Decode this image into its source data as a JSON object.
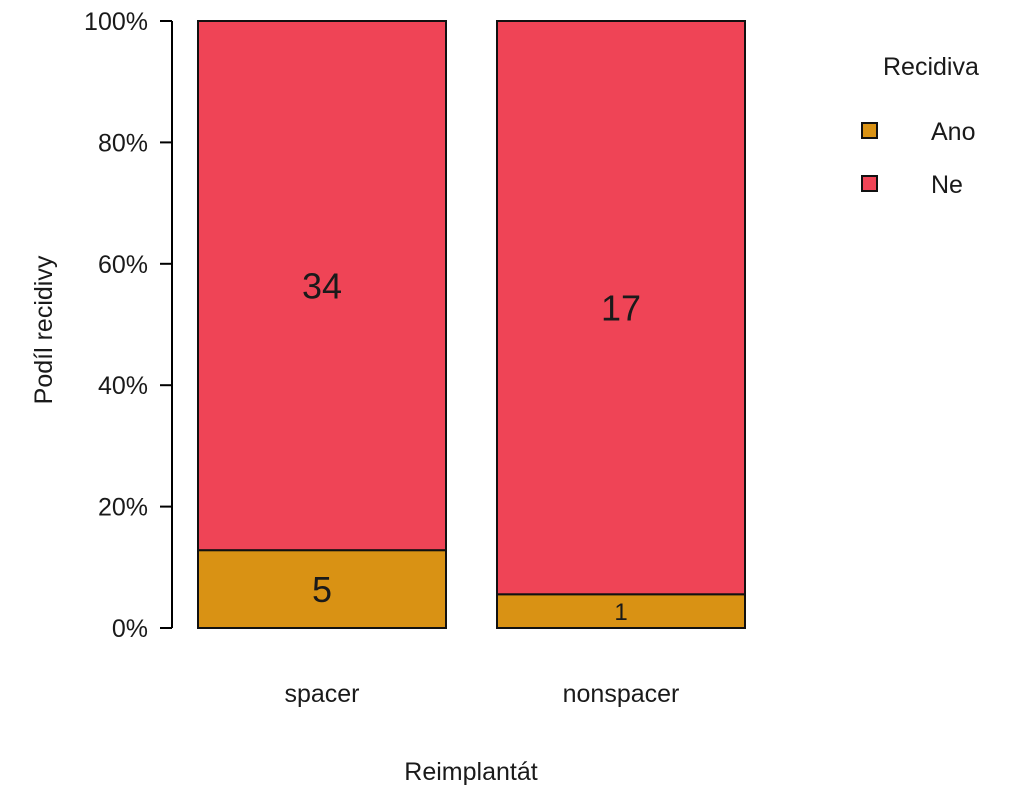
{
  "chart_data": {
    "type": "bar",
    "stacked": true,
    "normalized": true,
    "title": "",
    "xlabel": "Reimplantát",
    "ylabel": "Podíl recidivy",
    "categories": [
      "spacer",
      "nonspacer"
    ],
    "series": [
      {
        "name": "Ano",
        "values": [
          5,
          1
        ],
        "color": "#d99214"
      },
      {
        "name": "Ne",
        "values": [
          34,
          17
        ],
        "color": "#ef4456"
      }
    ],
    "ylim": [
      0,
      1
    ],
    "yticks": [
      0,
      0.2,
      0.4,
      0.6,
      0.8,
      1.0
    ],
    "ytick_labels": [
      "0%",
      "20%",
      "40%",
      "60%",
      "80%",
      "100%"
    ],
    "data_labels": true,
    "legend": {
      "title": "Recidiva",
      "placement": "top-right",
      "entries": [
        "Ano",
        "Ne"
      ]
    },
    "grid": false
  }
}
